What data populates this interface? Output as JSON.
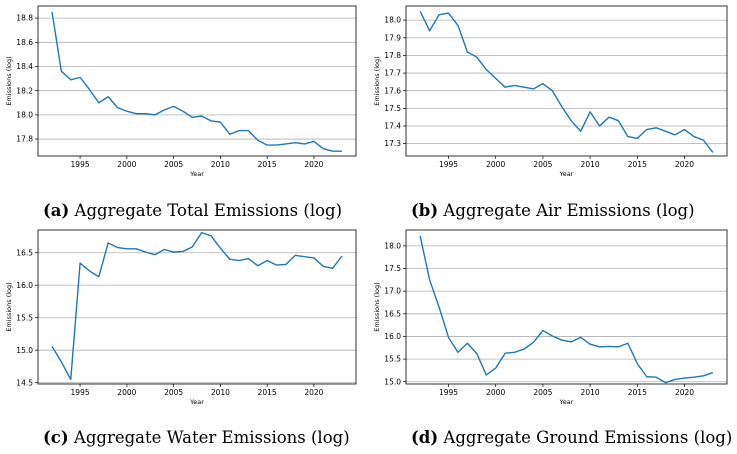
{
  "figure": {
    "captions": [
      {
        "tag": "(a)",
        "text": "Aggregate Total Emissions (log)"
      },
      {
        "tag": "(b)",
        "text": "Aggregate Air Emissions (log)"
      },
      {
        "tag": "(c)",
        "text": "Aggregate Water Emissions (log)"
      },
      {
        "tag": "(d)",
        "text": "Aggregate Ground Emissions (log)"
      }
    ]
  },
  "colors": {
    "line": "#1f77b4",
    "grid": "#b0b0b0",
    "axis": "#000000"
  },
  "chart_data": [
    {
      "type": "line",
      "title": "Aggregate Total Emissions (log)",
      "xlabel": "Year",
      "ylabel": "Emissions (log)",
      "xlim": [
        1990.5,
        2024.5
      ],
      "ylim": [
        17.66,
        18.9
      ],
      "xticks": [
        1995,
        2000,
        2005,
        2010,
        2015,
        2020
      ],
      "yticks": [
        17.8,
        18.0,
        18.2,
        18.4,
        18.6,
        18.8
      ],
      "ytick_labels": [
        "17.8",
        "18.0",
        "18.2",
        "18.4",
        "18.6",
        "18.8"
      ],
      "grid": "horizontal",
      "x": [
        1992,
        1993,
        1994,
        1995,
        1996,
        1997,
        1998,
        1999,
        2000,
        2001,
        2002,
        2003,
        2004,
        2005,
        2006,
        2007,
        2008,
        2009,
        2010,
        2011,
        2012,
        2013,
        2014,
        2015,
        2016,
        2017,
        2018,
        2019,
        2020,
        2021,
        2022,
        2023
      ],
      "y": [
        18.85,
        18.36,
        18.29,
        18.31,
        18.21,
        18.1,
        18.15,
        18.06,
        18.03,
        18.01,
        18.01,
        18.0,
        18.04,
        18.07,
        18.03,
        17.98,
        17.99,
        17.95,
        17.94,
        17.84,
        17.87,
        17.87,
        17.79,
        17.75,
        17.75,
        17.76,
        17.77,
        17.76,
        17.78,
        17.72,
        17.7,
        17.7
      ]
    },
    {
      "type": "line",
      "title": "Aggregate Air Emissions (log)",
      "xlabel": "Year",
      "ylabel": "Emissions (log)",
      "xlim": [
        1990.5,
        2024.5
      ],
      "ylim": [
        17.23,
        18.08
      ],
      "xticks": [
        1995,
        2000,
        2005,
        2010,
        2015,
        2020
      ],
      "yticks": [
        17.3,
        17.4,
        17.5,
        17.6,
        17.7,
        17.8,
        17.9,
        18.0
      ],
      "ytick_labels": [
        "17.3",
        "17.4",
        "17.5",
        "17.6",
        "17.7",
        "17.8",
        "17.9",
        "18.0"
      ],
      "grid": "horizontal",
      "x": [
        1992,
        1993,
        1994,
        1995,
        1996,
        1997,
        1998,
        1999,
        2000,
        2001,
        2002,
        2003,
        2004,
        2005,
        2006,
        2007,
        2008,
        2009,
        2010,
        2011,
        2012,
        2013,
        2014,
        2015,
        2016,
        2017,
        2018,
        2019,
        2020,
        2021,
        2022,
        2023
      ],
      "y": [
        18.05,
        17.94,
        18.03,
        18.04,
        17.97,
        17.82,
        17.79,
        17.72,
        17.67,
        17.62,
        17.63,
        17.62,
        17.61,
        17.64,
        17.6,
        17.51,
        17.43,
        17.37,
        17.48,
        17.4,
        17.45,
        17.43,
        17.34,
        17.33,
        17.38,
        17.39,
        17.37,
        17.35,
        17.38,
        17.34,
        17.32,
        17.25
      ]
    },
    {
      "type": "line",
      "title": "Aggregate Water Emissions (log)",
      "xlabel": "Year",
      "ylabel": "Emissions (log)",
      "xlim": [
        1990.5,
        2024.5
      ],
      "ylim": [
        14.48,
        16.85
      ],
      "xticks": [
        1995,
        2000,
        2005,
        2010,
        2015,
        2020
      ],
      "yticks": [
        14.5,
        15.0,
        15.5,
        16.0,
        16.5
      ],
      "ytick_labels": [
        "14.5",
        "15.0",
        "15.5",
        "16.0",
        "16.5"
      ],
      "grid": "horizontal",
      "x": [
        1992,
        1993,
        1994,
        1995,
        1996,
        1997,
        1998,
        1999,
        2000,
        2001,
        2002,
        2003,
        2004,
        2005,
        2006,
        2007,
        2008,
        2009,
        2010,
        2011,
        2012,
        2013,
        2014,
        2015,
        2016,
        2017,
        2018,
        2019,
        2020,
        2021,
        2022,
        2023
      ],
      "y": [
        15.06,
        14.82,
        14.55,
        16.34,
        16.22,
        16.13,
        16.65,
        16.58,
        16.56,
        16.56,
        16.51,
        16.47,
        16.55,
        16.51,
        16.52,
        16.59,
        16.81,
        16.76,
        16.57,
        16.4,
        16.38,
        16.41,
        16.3,
        16.38,
        16.31,
        16.32,
        16.46,
        16.44,
        16.42,
        16.29,
        16.26,
        16.45
      ]
    },
    {
      "type": "line",
      "title": "Aggregate Ground Emissions (log)",
      "xlabel": "Year",
      "ylabel": "Emissions (log)",
      "xlim": [
        1990.5,
        2024.5
      ],
      "ylim": [
        14.95,
        18.35
      ],
      "xticks": [
        1995,
        2000,
        2005,
        2010,
        2015,
        2020
      ],
      "yticks": [
        15.0,
        15.5,
        16.0,
        16.5,
        17.0,
        17.5,
        18.0
      ],
      "ytick_labels": [
        "15.0",
        "15.5",
        "16.0",
        "16.5",
        "17.0",
        "17.5",
        "18.0"
      ],
      "grid": "horizontal",
      "x": [
        1992,
        1993,
        1994,
        1995,
        1996,
        1997,
        1998,
        1999,
        2000,
        2001,
        2002,
        2003,
        2004,
        2005,
        2006,
        2007,
        2008,
        2009,
        2010,
        2011,
        2012,
        2013,
        2014,
        2015,
        2016,
        2017,
        2018,
        2019,
        2020,
        2021,
        2022,
        2023
      ],
      "y": [
        18.22,
        17.25,
        16.65,
        15.98,
        15.65,
        15.85,
        15.62,
        15.15,
        15.3,
        15.63,
        15.65,
        15.72,
        15.87,
        16.13,
        16.01,
        15.92,
        15.88,
        15.98,
        15.83,
        15.77,
        15.78,
        15.77,
        15.85,
        15.4,
        15.11,
        15.1,
        14.98,
        15.05,
        15.08,
        15.1,
        15.13,
        15.2
      ]
    }
  ]
}
